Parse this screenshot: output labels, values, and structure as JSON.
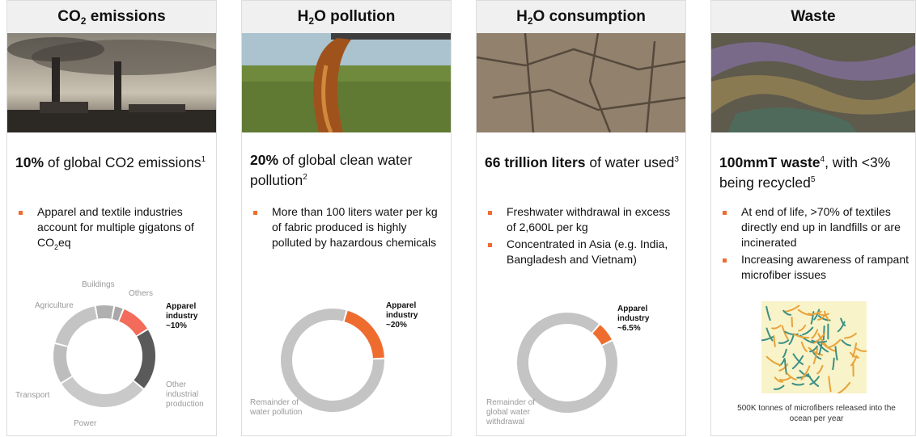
{
  "panels": [
    {
      "title": {
        "main": "CO",
        "sub": "2",
        "rest": " emissions"
      },
      "headline": {
        "bold": "10%",
        "rest": " of global CO2 emissions",
        "note": "1"
      },
      "bullets": [
        {
          "text": "Apparel and textile industries account for multiple gigatons of CO",
          "sub": "2",
          "tail": "eq"
        }
      ],
      "chart_data": {
        "type": "donut",
        "categories": [
          "Apparel industry",
          "Other industrial production",
          "Power",
          "Transport",
          "Agriculture",
          "Buildings",
          "Others"
        ],
        "values": [
          10,
          20,
          30,
          13,
          18,
          6,
          3
        ],
        "value_labels": [
          "~10%",
          null,
          null,
          null,
          null,
          null,
          null
        ],
        "colors": [
          "#f26b5b",
          "#5a5a5a",
          "#c9c9c9",
          "#bdbdbd",
          "#c4c4c4",
          "#b0b0b0",
          "#a8a8a8"
        ]
      }
    },
    {
      "title": {
        "main": "H",
        "sub": "2",
        "rest": "O pollution"
      },
      "headline": {
        "bold": "20%",
        "rest": " of global clean water pollution",
        "note": "2"
      },
      "bullets": [
        "More than 100 liters water per kg of fabric produced is highly polluted by hazardous chemicals"
      ],
      "chart_data": {
        "type": "donut",
        "categories": [
          "Apparel industry",
          "Remainder of water pollution"
        ],
        "values": [
          20,
          80
        ],
        "value_labels": [
          "~20%",
          null
        ],
        "colors": [
          "#ef6c2f",
          "#c4c4c4"
        ]
      }
    },
    {
      "title": {
        "main": "H",
        "sub": "2",
        "rest": "O consumption"
      },
      "headline": {
        "bold": "66 trillion liters",
        "rest": " of water used",
        "note": "3"
      },
      "bullets": [
        "Freshwater withdrawal in excess of 2,600L per kg",
        "Concentrated in Asia (e.g. India, Bangladesh and Vietnam)"
      ],
      "chart_data": {
        "type": "donut",
        "categories": [
          "Apparel industry",
          "Remainder of global water withdrawal"
        ],
        "values": [
          6.5,
          93.5
        ],
        "value_labels": [
          "~6.5%",
          null
        ],
        "colors": [
          "#ef6c2f",
          "#c4c4c4"
        ]
      }
    },
    {
      "title": "Waste",
      "headline": {
        "bold": "100mmT waste",
        "note": "4",
        "rest": ", with <3% being recycled",
        "note2": "5"
      },
      "bullets": [
        "At end of life, >70% of textiles directly end up in landfills or are incinerated",
        "Increasing awareness of rampant microfiber issues"
      ],
      "caption": "500K tonnes of microfibers released into the ocean per year"
    }
  ]
}
